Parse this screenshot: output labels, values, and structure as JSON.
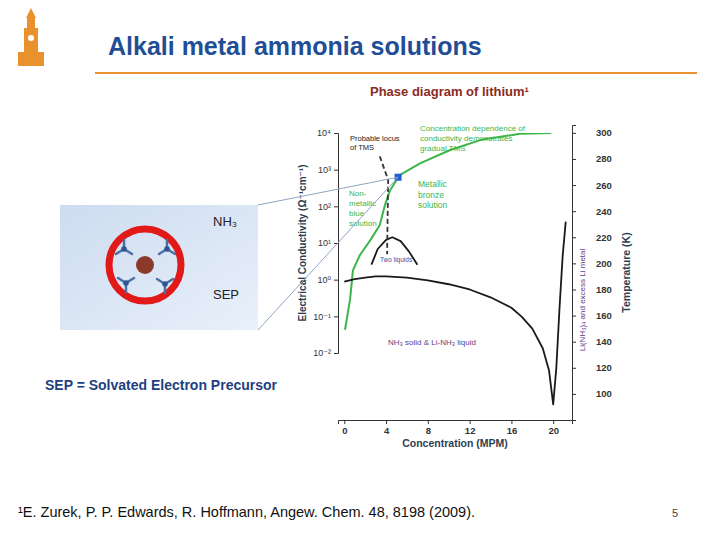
{
  "slide": {
    "title": "Alkali metal ammonia solutions",
    "subtitle": "Phase diagram of lithium¹",
    "image_labels": [
      "NH₃",
      "SEP"
    ],
    "caption": "SEP = Solvated Electron Precursor",
    "footnote": "¹E. Zurek, P. P. Edwards, R. Hoffmann, Angew. Chem. 48, 8198 (2009).",
    "page_number": 5
  },
  "chart_data": {
    "type": "line",
    "xlabel": "Concentration (MPM)",
    "ylabel": "Electrical Conductivity (Ω⁻¹cm⁻¹)",
    "y2label": "Temperature (K)",
    "xlim": [
      -0.6,
      21.8
    ],
    "xticks": [
      0,
      4,
      8,
      12,
      16,
      20
    ],
    "ylim": [
      0.01,
      10000
    ],
    "yticks": [
      {
        "value": 0.01,
        "label": "10⁻²"
      },
      {
        "value": 0.1,
        "label": "10⁻¹"
      },
      {
        "value": 1,
        "label": "10⁰"
      },
      {
        "value": 10,
        "label": "10¹"
      },
      {
        "value": 100,
        "label": "10²"
      },
      {
        "value": 1000,
        "label": "10³"
      },
      {
        "value": 10000,
        "label": "10⁴"
      }
    ],
    "y2lim": [
      80,
      306
    ],
    "y2ticks": [
      100,
      120,
      140,
      160,
      180,
      200,
      220,
      240,
      260,
      280,
      300
    ],
    "log": "y",
    "grid": false,
    "annotations": [
      [
        "Probable locus",
        "of TMS"
      ],
      [
        "Concentration dependence of",
        "conductivity demonstrates",
        "gradual TMS"
      ],
      [
        "Non-",
        "metallic",
        "blue",
        "solution"
      ],
      [
        "Metallic",
        "bronze",
        "solution"
      ],
      [
        "Two liquids"
      ],
      [
        "NH₃ solid & Li-NH₃ liquid"
      ],
      [
        "Li(NH₃)₄ and excess Li metal"
      ]
    ],
    "series": [
      {
        "color": "#3db54a",
        "axis": "y",
        "x": [
          0.07,
          0.55,
          0.83,
          1.5,
          2.5,
          3.4,
          3.9,
          4.4,
          5.3,
          7.3,
          10.2,
          13.1,
          16.8,
          19.8
        ],
        "values": [
          0.043,
          0.28,
          1.8,
          4.7,
          12,
          31,
          110,
          280,
          710,
          1500,
          3500,
          6500,
          9500,
          10000
        ]
      },
      {
        "color": "#1a1a1a",
        "axis": "y2",
        "x": [
          0,
          1,
          2,
          3,
          4,
          6,
          8,
          10,
          12,
          14,
          16,
          17,
          18,
          19,
          19.6,
          20,
          20.3,
          20.6,
          20.9,
          21.2
        ],
        "values": [
          186,
          188,
          189,
          190,
          190,
          189,
          187,
          184,
          180,
          174,
          166,
          159,
          150,
          135,
          118,
          92,
          120,
          165,
          205,
          232
        ]
      },
      {
        "color": "#1a1a1a",
        "axis": "y2",
        "x": [
          2.6,
          3.2,
          4,
          4.6,
          5.4,
          6.2,
          7
        ],
        "values": [
          199,
          211,
          218,
          220,
          217,
          209,
          199
        ]
      },
      {
        "color": "#333333",
        "axis": "y2",
        "line_style": "dashed",
        "x": [
          3.4,
          4.2,
          4.1
        ],
        "values": [
          282,
          264,
          207
        ]
      },
      {
        "type": "scatter",
        "marker": "square",
        "color": "#1f5fd0",
        "axis": "y2",
        "x": [
          5.15
        ],
        "values": [
          266
        ]
      }
    ]
  }
}
